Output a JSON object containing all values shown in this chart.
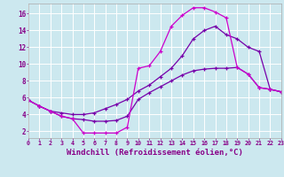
{
  "background_color": "#cce8ef",
  "grid_color": "#ffffff",
  "line_color_dark": "#7700aa",
  "line_color_bright": "#cc00cc",
  "xlabel": "Windchill (Refroidissement éolien,°C)",
  "xlabel_fontsize": 6.5,
  "xtick_labels": [
    "0",
    "1",
    "2",
    "3",
    "4",
    "5",
    "6",
    "7",
    "8",
    "9",
    "10",
    "11",
    "12",
    "13",
    "14",
    "15",
    "16",
    "17",
    "18",
    "19",
    "20",
    "21",
    "22",
    "23"
  ],
  "ytick_labels": [
    "2",
    "4",
    "6",
    "8",
    "10",
    "12",
    "14",
    "16"
  ],
  "xlim": [
    0,
    23
  ],
  "ylim": [
    1.2,
    17.2
  ],
  "curve1_x": [
    0,
    1,
    2,
    3,
    4,
    5,
    6,
    7,
    8,
    9,
    10,
    11,
    12,
    13,
    14,
    15,
    16,
    17,
    18,
    19,
    20,
    21,
    22,
    23
  ],
  "curve1_y": [
    5.7,
    5.0,
    4.4,
    3.8,
    3.5,
    3.4,
    3.2,
    3.2,
    3.3,
    3.8,
    5.8,
    6.6,
    7.3,
    8.0,
    8.7,
    9.2,
    9.4,
    9.5,
    9.5,
    9.6,
    8.8,
    7.2,
    7.0,
    6.7
  ],
  "curve2_x": [
    0,
    1,
    2,
    3,
    4,
    5,
    6,
    7,
    8,
    9,
    10,
    11,
    12,
    13,
    14,
    15,
    16,
    17,
    18,
    19,
    20,
    21,
    22,
    23
  ],
  "curve2_y": [
    5.7,
    5.0,
    4.4,
    4.2,
    4.0,
    4.0,
    4.2,
    4.7,
    5.2,
    5.8,
    6.8,
    7.5,
    8.5,
    9.5,
    11.0,
    13.0,
    14.0,
    14.5,
    13.5,
    13.0,
    12.0,
    11.5,
    7.0,
    6.7
  ],
  "curve3_x": [
    0,
    1,
    2,
    3,
    4,
    5,
    6,
    7,
    8,
    9,
    10,
    11,
    12,
    13,
    14,
    15,
    16,
    17,
    18,
    19,
    20,
    21,
    22,
    23
  ],
  "curve3_y": [
    5.7,
    5.0,
    4.4,
    3.8,
    3.5,
    1.8,
    1.8,
    1.8,
    1.8,
    2.5,
    9.5,
    9.8,
    11.5,
    14.5,
    15.8,
    16.7,
    16.7,
    16.2,
    15.5,
    9.6,
    8.8,
    7.2,
    7.0,
    6.7
  ]
}
